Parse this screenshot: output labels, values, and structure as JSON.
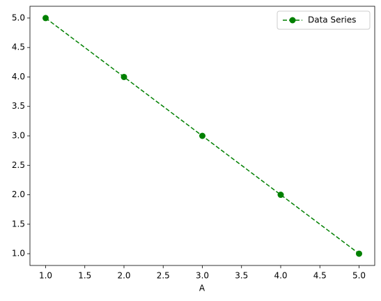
{
  "chart_data": {
    "type": "line",
    "xlabel": "A",
    "x": [
      1,
      2,
      3,
      4,
      5
    ],
    "series": [
      {
        "name": "Data Series",
        "color": "#008000",
        "values": [
          5,
          4,
          3,
          2,
          1
        ]
      }
    ],
    "xlim": [
      0.8,
      5.2
    ],
    "ylim": [
      0.8,
      5.2
    ],
    "xticks": [
      {
        "value": 1,
        "label": "1.0"
      },
      1.5,
      {
        "value": 2,
        "label": "2.0"
      },
      2.5,
      {
        "value": 3,
        "label": "3.0"
      },
      3.5,
      {
        "value": 4,
        "label": "4.0"
      },
      4.5,
      {
        "value": 5,
        "label": "5.0"
      }
    ],
    "yticks": [
      {
        "value": 1,
        "label": "1.0"
      },
      1.5,
      {
        "value": 2,
        "label": "2.0"
      },
      2.5,
      {
        "value": 3,
        "label": "3.0"
      },
      3.5,
      {
        "value": 4,
        "label": "4.0"
      },
      4.5,
      {
        "value": 5,
        "label": "5.0"
      }
    ],
    "line_style": "dashed",
    "marker": "circle",
    "grid": false,
    "legend": "upper right"
  }
}
